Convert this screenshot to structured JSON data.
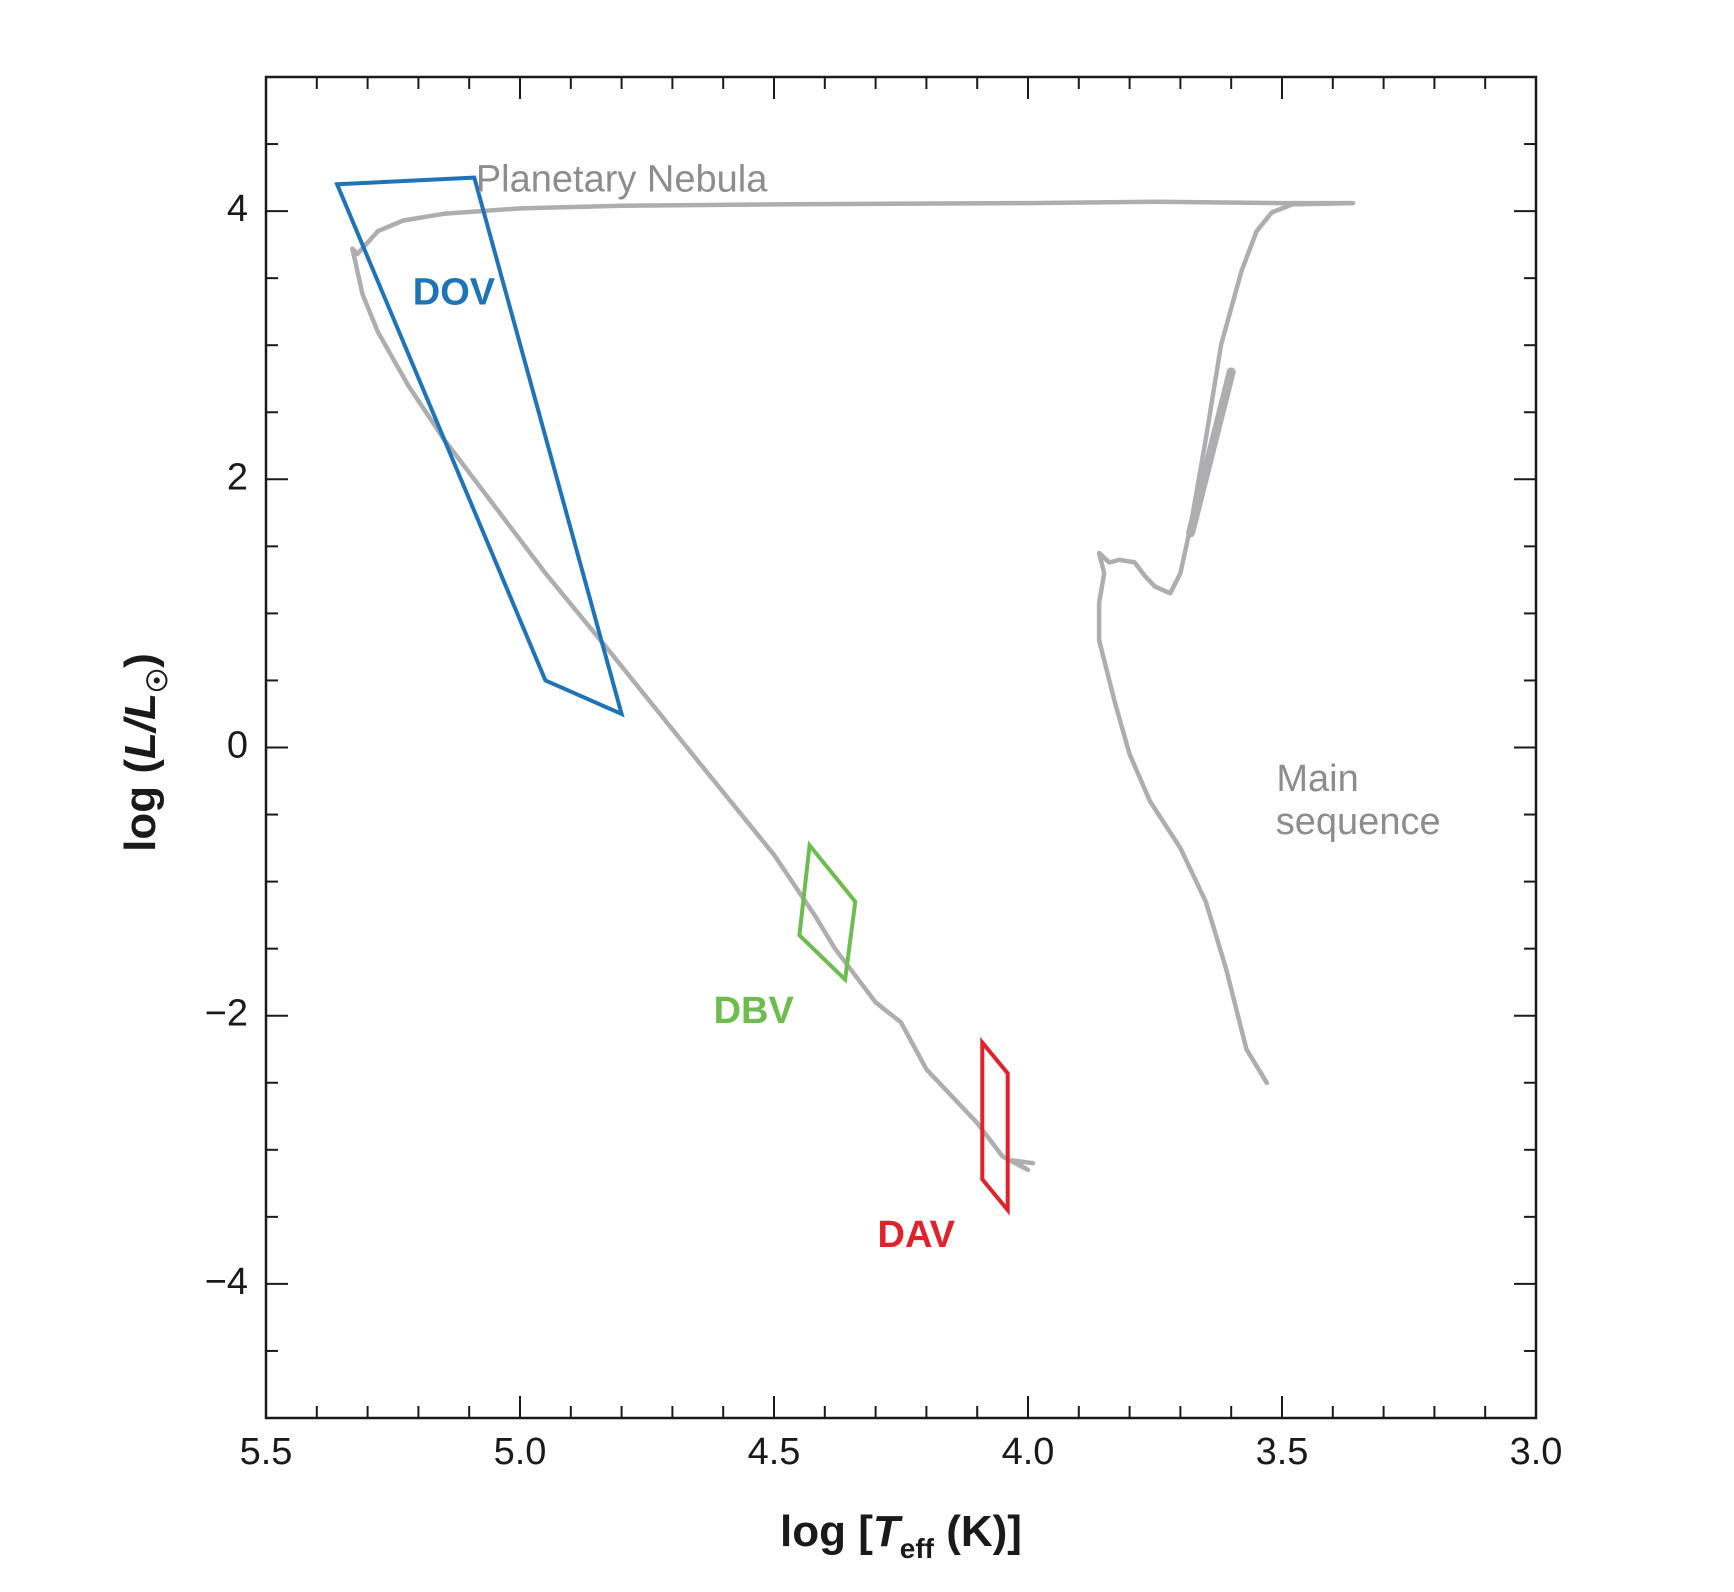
{
  "chart_data": {
    "type": "line",
    "title": "",
    "xlabel": {
      "pre": "log [",
      "var": "T",
      "sub": "eff",
      "post": " (K)]"
    },
    "ylabel": {
      "pre": "log (",
      "var": "L/L",
      "sub": "☉",
      "post": ")"
    },
    "xlim": [
      5.5,
      3.0
    ],
    "ylim": [
      -5.0,
      5.0
    ],
    "x_reversed": true,
    "x_ticks": [
      5.5,
      5.0,
      4.5,
      4.0,
      3.5,
      3.0
    ],
    "x_tick_labels": [
      "5.5",
      "5.0",
      "4.5",
      "4.0",
      "3.5",
      "3.0"
    ],
    "x_minor_step": 0.1,
    "y_ticks": [
      4,
      2,
      0,
      -2,
      -4
    ],
    "y_tick_labels": [
      "4",
      "2",
      "0",
      "−2",
      "−4"
    ],
    "y_minor_step": 0.5,
    "grid": false,
    "colors": {
      "track": "#aeaeb0",
      "track_text": "#8d8d90",
      "dov": "#1f74b8",
      "dbv": "#6cbd4d",
      "dav": "#e3212b",
      "axis": "#1a1a1a"
    },
    "series": [
      {
        "kind": "track",
        "points": [
          [
            3.86,
            1.45
          ],
          [
            3.84,
            1.38
          ],
          [
            3.82,
            1.4
          ],
          [
            3.79,
            1.38
          ],
          [
            3.77,
            1.28
          ],
          [
            3.75,
            1.2
          ],
          [
            3.72,
            1.15
          ],
          [
            3.7,
            1.3
          ],
          [
            3.68,
            1.65
          ],
          [
            3.65,
            2.3
          ],
          [
            3.62,
            3.0
          ],
          [
            3.58,
            3.55
          ],
          [
            3.55,
            3.85
          ],
          [
            3.52,
            3.99
          ],
          [
            3.48,
            4.05
          ],
          [
            3.36,
            4.06
          ],
          [
            3.5,
            4.06
          ],
          [
            3.75,
            4.07
          ],
          [
            4.0,
            4.06
          ],
          [
            4.5,
            4.05
          ],
          [
            4.8,
            4.04
          ],
          [
            5.0,
            4.02
          ],
          [
            5.15,
            3.98
          ],
          [
            5.23,
            3.93
          ],
          [
            5.28,
            3.85
          ],
          [
            5.32,
            3.68
          ],
          [
            5.33,
            3.72
          ],
          [
            5.31,
            3.38
          ],
          [
            5.28,
            3.1
          ],
          [
            5.22,
            2.7
          ],
          [
            5.15,
            2.3
          ],
          [
            5.05,
            1.8
          ],
          [
            4.95,
            1.3
          ],
          [
            4.82,
            0.7
          ],
          [
            4.65,
            -0.1
          ],
          [
            4.5,
            -0.8
          ],
          [
            4.42,
            -1.25
          ],
          [
            4.38,
            -1.5
          ],
          [
            4.3,
            -1.9
          ],
          [
            4.25,
            -2.05
          ],
          [
            4.2,
            -2.4
          ],
          [
            4.1,
            -2.8
          ],
          [
            4.05,
            -3.05
          ],
          [
            4.0,
            -3.15
          ],
          [
            4.03,
            -3.08
          ],
          [
            3.99,
            -3.1
          ]
        ]
      },
      {
        "kind": "main-sequence",
        "points": [
          [
            3.86,
            1.45
          ],
          [
            3.85,
            1.3
          ],
          [
            3.86,
            1.08
          ],
          [
            3.86,
            0.8
          ],
          [
            3.83,
            0.35
          ],
          [
            3.8,
            -0.05
          ],
          [
            3.76,
            -0.4
          ],
          [
            3.7,
            -0.75
          ],
          [
            3.65,
            -1.15
          ],
          [
            3.61,
            -1.65
          ],
          [
            3.57,
            -2.25
          ],
          [
            3.53,
            -2.5
          ]
        ]
      },
      {
        "kind": "ms-thick",
        "points": [
          [
            3.68,
            1.6
          ],
          [
            3.6,
            2.8
          ]
        ]
      }
    ],
    "regions": [
      {
        "name": "DOV",
        "color_key": "dov",
        "points": [
          [
            5.36,
            4.2
          ],
          [
            5.09,
            4.25
          ],
          [
            4.8,
            0.25
          ],
          [
            4.95,
            0.5
          ]
        ]
      },
      {
        "name": "DBV",
        "color_key": "dbv",
        "points": [
          [
            4.43,
            -0.73
          ],
          [
            4.34,
            -1.15
          ],
          [
            4.36,
            -1.73
          ],
          [
            4.45,
            -1.4
          ]
        ]
      },
      {
        "name": "DAV",
        "color_key": "dav",
        "points": [
          [
            4.09,
            -2.2
          ],
          [
            4.04,
            -2.43
          ],
          [
            4.04,
            -3.45
          ],
          [
            4.09,
            -3.22
          ]
        ]
      }
    ],
    "annotations": [
      {
        "text": "Planetary Nebula",
        "x": 4.8,
        "y": 4.22,
        "color_key": "track_text"
      },
      {
        "text": "Main",
        "x": 3.43,
        "y": -0.25,
        "color_key": "track_text"
      },
      {
        "text": "sequence",
        "x": 3.35,
        "y": -0.57,
        "color_key": "track_text"
      },
      {
        "text": "DOV",
        "x": 5.13,
        "y": 3.38,
        "color_key": "dov"
      },
      {
        "text": "DBV",
        "x": 4.54,
        "y": -1.98,
        "color_key": "dbv"
      },
      {
        "text": "DAV",
        "x": 4.22,
        "y": -3.65,
        "color_key": "dav"
      }
    ]
  }
}
